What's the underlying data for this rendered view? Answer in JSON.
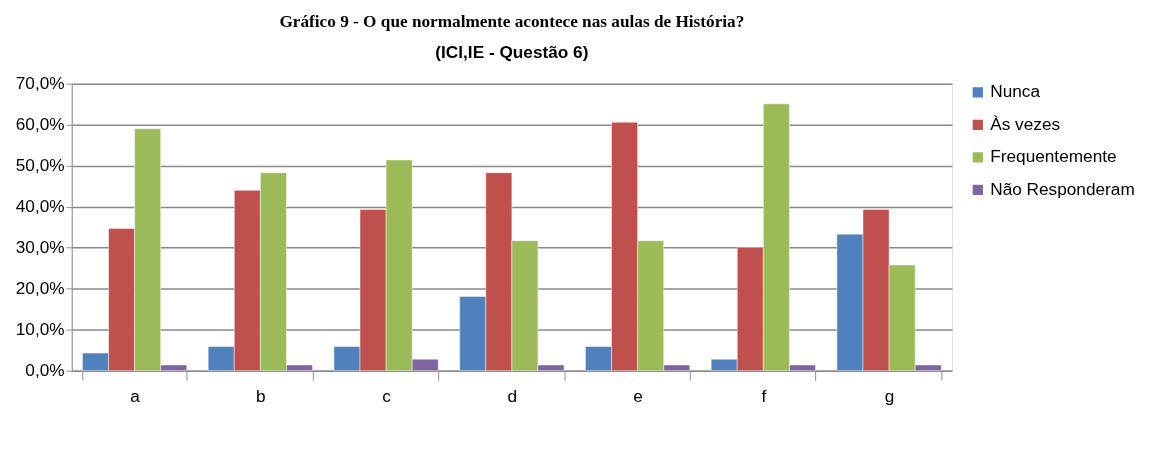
{
  "chart_data": {
    "type": "bar",
    "title": "Gráfico 9 - O que normalmente acontece nas aulas de História?",
    "subtitle": "(ICI,IE - Questão 6)",
    "categories": [
      "a",
      "b",
      "c",
      "d",
      "e",
      "f",
      "g"
    ],
    "series": [
      {
        "name": "Nunca",
        "color": "#4f81bd",
        "values": [
          4.3,
          5.9,
          5.9,
          18.1,
          5.9,
          2.8,
          33.3
        ]
      },
      {
        "name": "Às vezes",
        "color": "#c0504d",
        "values": [
          34.7,
          44.0,
          39.3,
          48.3,
          60.6,
          30.1,
          39.3
        ]
      },
      {
        "name": "Frequentemente",
        "color": "#9bbb59",
        "values": [
          59.0,
          48.3,
          51.4,
          31.7,
          31.7,
          65.1,
          25.8
        ]
      },
      {
        "name": "Não Responderam",
        "color": "#8064a2",
        "values": [
          1.4,
          1.4,
          2.8,
          1.4,
          1.4,
          1.4,
          1.4
        ]
      }
    ],
    "ylim": [
      0,
      70
    ],
    "yticks": [
      {
        "value": 0,
        "label": "0,0%"
      },
      {
        "value": 10,
        "label": "10,0%"
      },
      {
        "value": 20,
        "label": "20,0%"
      },
      {
        "value": 30,
        "label": "30,0%"
      },
      {
        "value": 40,
        "label": "40,0%"
      },
      {
        "value": 50,
        "label": "50,0%"
      },
      {
        "value": 60,
        "label": "60,0%"
      },
      {
        "value": 70,
        "label": "70,0%"
      }
    ],
    "grid": "y",
    "legend": "right"
  }
}
